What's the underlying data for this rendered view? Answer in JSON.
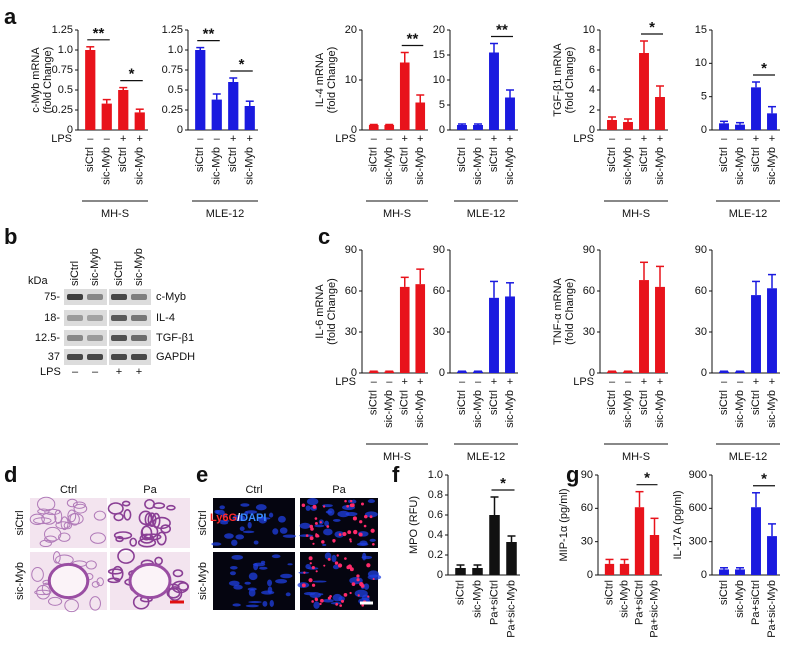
{
  "panel_labels": [
    "a",
    "b",
    "c",
    "d",
    "e",
    "f",
    "g"
  ],
  "chart_data": [
    {
      "type": "bar",
      "ylabel": [
        "c-Myb mRNA",
        "(fold Change)"
      ],
      "categories": [
        "siCtrl",
        "sic-Myb",
        "siCtrl",
        "sic-Myb"
      ],
      "values": [
        1.0,
        0.33,
        0.5,
        0.22
      ],
      "errors": [
        0.04,
        0.05,
        0.03,
        0.04
      ],
      "color": "#e8131b",
      "ylim": [
        0,
        1.25
      ],
      "yticks": [
        0,
        0.25,
        0.5,
        0.75,
        {
          "value": 1,
          "label": "1.0"
        },
        1.25
      ],
      "lps_label": "LPS",
      "lps_marks": [
        "–",
        "–",
        "+",
        "+"
      ],
      "group": "MH-S",
      "significance": [
        "**",
        "*"
      ]
    },
    {
      "type": "bar",
      "categories": [
        "siCtrl",
        "sic-Myb",
        "siCtrl",
        "sic-Myb"
      ],
      "values": [
        1.0,
        0.38,
        0.6,
        0.3
      ],
      "errors": [
        0.03,
        0.07,
        0.05,
        0.06
      ],
      "color": "#1a1adf",
      "ylim": [
        0,
        1.25
      ],
      "yticks": [
        0,
        0.25,
        0.5,
        0.75,
        {
          "value": 1,
          "label": "1.0"
        },
        1.25
      ],
      "lps_marks": [
        "–",
        "–",
        "+",
        "+"
      ],
      "group": "MLE-12",
      "significance": [
        "**",
        "*"
      ]
    },
    {
      "type": "bar",
      "ylabel": [
        "IL-4 mRNA",
        "(fold Change)"
      ],
      "categories": [
        "siCtrl",
        "sic-Myb",
        "siCtrl",
        "sic-Myb"
      ],
      "values": [
        1,
        1,
        13.5,
        5.5
      ],
      "errors": [
        0.1,
        0.1,
        2,
        1.5
      ],
      "color": "#e8131b",
      "ylim": [
        0,
        20
      ],
      "yticks": [
        0,
        10,
        20
      ],
      "lps_label": "LPS",
      "lps_marks": [
        "–",
        "–",
        "+",
        "+"
      ],
      "group": "MH-S",
      "significance": [
        null,
        "**"
      ]
    },
    {
      "type": "bar",
      "categories": [
        "siCtrl",
        "sic-Myb",
        "siCtrl",
        "sic-Myb"
      ],
      "values": [
        1,
        1,
        15.5,
        6.5
      ],
      "errors": [
        0.2,
        0.2,
        1.8,
        1.5
      ],
      "color": "#1a1adf",
      "ylim": [
        0,
        20
      ],
      "yticks": [
        0,
        5,
        10,
        15,
        20
      ],
      "lps_marks": [
        "–",
        "–",
        "+",
        "+"
      ],
      "group": "MLE-12",
      "significance": [
        null,
        "**"
      ]
    },
    {
      "type": "bar",
      "ylabel": [
        "TGF-β1 mRNA",
        "(fold Change)"
      ],
      "categories": [
        "siCtrl",
        "sic-Myb",
        "siCtrl",
        "sic-Myb"
      ],
      "values": [
        1,
        0.8,
        7.7,
        3.3
      ],
      "errors": [
        0.3,
        0.3,
        1.2,
        1.1
      ],
      "color": "#e8131b",
      "ylim": [
        0,
        10
      ],
      "yticks": [
        0,
        2,
        4,
        6,
        8,
        10
      ],
      "lps_label": "LPS",
      "lps_marks": [
        "–",
        "–",
        "+",
        "+"
      ],
      "group": "MH-S",
      "significance": [
        null,
        "*"
      ]
    },
    {
      "type": "bar",
      "categories": [
        "siCtrl",
        "sic-Myb",
        "siCtrl",
        "sic-Myb"
      ],
      "values": [
        1,
        0.8,
        6.4,
        2.5
      ],
      "errors": [
        0.3,
        0.3,
        0.8,
        1.0
      ],
      "color": "#1a1adf",
      "ylim": [
        0,
        15
      ],
      "yticks": [
        0,
        5,
        10,
        15
      ],
      "lps_marks": [
        "–",
        "–",
        "+",
        "+"
      ],
      "group": "MLE-12",
      "significance": [
        null,
        "*"
      ]
    },
    {
      "type": "bar",
      "ylabel": [
        "IL-6 mRNA",
        "(fold Change)"
      ],
      "categories": [
        "siCtrl",
        "sic-Myb",
        "siCtrl",
        "sic-Myb"
      ],
      "values": [
        1,
        1,
        63,
        65
      ],
      "errors": [
        0.3,
        0.3,
        7,
        11
      ],
      "color": "#e8131b",
      "ylim": [
        0,
        90
      ],
      "yticks": [
        0,
        30,
        60,
        90
      ],
      "lps_label": "LPS",
      "lps_marks": [
        "–",
        "–",
        "+",
        "+"
      ],
      "group": "MH-S"
    },
    {
      "type": "bar",
      "categories": [
        "siCtrl",
        "sic-Myb",
        "siCtrl",
        "sic-Myb"
      ],
      "values": [
        1,
        1,
        55,
        56
      ],
      "errors": [
        0.3,
        0.3,
        12,
        10
      ],
      "color": "#1a1adf",
      "ylim": [
        0,
        90
      ],
      "yticks": [
        0,
        30,
        60,
        90
      ],
      "lps_marks": [
        "–",
        "–",
        "+",
        "+"
      ],
      "group": "MLE-12"
    },
    {
      "type": "bar",
      "ylabel": [
        "TNF-α mRNA",
        "(fold Change)"
      ],
      "categories": [
        "siCtrl",
        "sic-Myb",
        "siCtrl",
        "sic-Myb"
      ],
      "values": [
        1,
        1,
        68,
        63
      ],
      "errors": [
        0.3,
        0.3,
        13,
        15
      ],
      "color": "#e8131b",
      "ylim": [
        0,
        90
      ],
      "yticks": [
        0,
        30,
        60,
        90
      ],
      "lps_label": "LPS",
      "lps_marks": [
        "–",
        "–",
        "+",
        "+"
      ],
      "group": "MH-S"
    },
    {
      "type": "bar",
      "categories": [
        "siCtrl",
        "sic-Myb",
        "siCtrl",
        "sic-Myb"
      ],
      "values": [
        1,
        1,
        57,
        62
      ],
      "errors": [
        0.3,
        0.3,
        10,
        10
      ],
      "color": "#1a1adf",
      "ylim": [
        0,
        90
      ],
      "yticks": [
        0,
        30,
        60,
        90
      ],
      "lps_marks": [
        "–",
        "–",
        "+",
        "+"
      ],
      "group": "MLE-12"
    },
    {
      "type": "bar",
      "ylabel": [
        "MPO (RFU)"
      ],
      "categories": [
        "siCtrl",
        "sic-Myb",
        "Pa+siCtrl",
        "Pa+sic-Myb"
      ],
      "values": [
        0.07,
        0.07,
        0.6,
        0.33
      ],
      "errors": [
        0.03,
        0.03,
        0.18,
        0.06
      ],
      "color": "#111111",
      "ylim": [
        0,
        1
      ],
      "yticks": [
        0,
        0.2,
        0.4,
        0.6,
        0.8,
        {
          "value": 1,
          "label": "1.0"
        }
      ],
      "significance": [
        null,
        "*"
      ]
    },
    {
      "type": "bar",
      "ylabel": [
        "MIP-1α (pg/ml)"
      ],
      "categories": [
        "siCtrl",
        "sic-Myb",
        "Pa+siCtrl",
        "Pa+sic-Myb"
      ],
      "values": [
        10,
        10,
        61,
        36
      ],
      "errors": [
        4,
        4,
        14,
        15
      ],
      "color": "#e8131b",
      "ylim": [
        0,
        90
      ],
      "yticks": [
        0,
        30,
        60,
        90
      ],
      "significance": [
        null,
        "*"
      ]
    },
    {
      "type": "bar",
      "ylabel": [
        "IL-17A (pg/ml)"
      ],
      "categories": [
        "siCtrl",
        "sic-Myb",
        "Pa+siCtrl",
        "Pa+sic-Myb"
      ],
      "values": [
        50,
        50,
        610,
        350
      ],
      "errors": [
        15,
        15,
        130,
        110
      ],
      "color": "#1a1adf",
      "ylim": [
        0,
        900
      ],
      "yticks": [
        0,
        300,
        600,
        900
      ],
      "significance": [
        null,
        "*"
      ]
    }
  ],
  "blot": {
    "kda": "kDa",
    "lanes": [
      "siCtrl",
      "sic-Myb",
      "siCtrl",
      "sic-Myb"
    ],
    "markers": [
      "75-",
      "18-",
      "12.5-",
      "37"
    ],
    "proteins": [
      "c-Myb",
      "IL-4",
      "TGF-β1",
      "GAPDH"
    ],
    "lps_label": "LPS",
    "lps_marks": [
      "–",
      "–",
      "+",
      "+"
    ]
  },
  "histology": {
    "columns": [
      "Ctrl",
      "Pa"
    ],
    "rows": [
      "siCtrl",
      "sic-Myb"
    ]
  },
  "immuno": {
    "columns": [
      "Ctrl",
      "Pa"
    ],
    "rows": [
      "siCtrl",
      "sic-Myb"
    ],
    "stain": [
      "Ly6G",
      "/",
      "DAPI"
    ]
  }
}
